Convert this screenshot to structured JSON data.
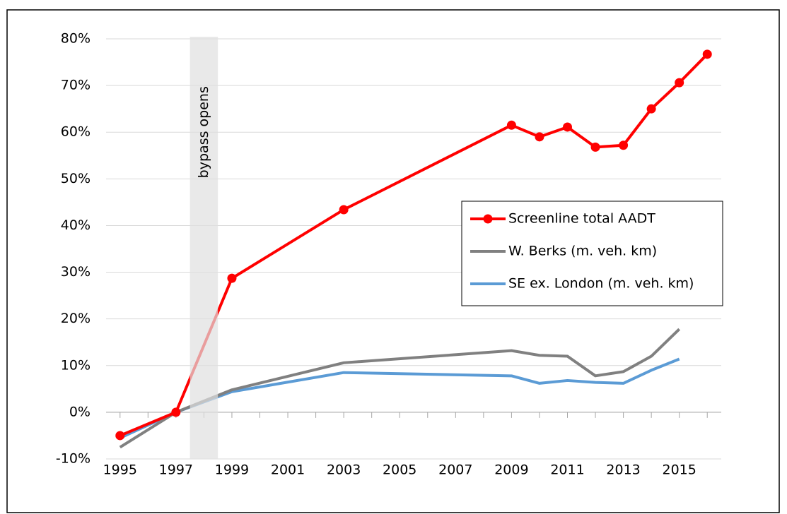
{
  "chart_data": {
    "type": "line",
    "xlim": [
      1994.5,
      2016.5
    ],
    "xticks": [
      1995,
      1997,
      1999,
      2001,
      2003,
      2005,
      2007,
      2009,
      2011,
      2013,
      2015
    ],
    "xminorticks": [
      1995,
      1996,
      1997,
      1998,
      1999,
      2000,
      2001,
      2002,
      2003,
      2004,
      2005,
      2006,
      2007,
      2008,
      2009,
      2010,
      2011,
      2012,
      2013,
      2014,
      2015,
      2016
    ],
    "ylim": [
      -10,
      80
    ],
    "yticks": [
      {
        "value": -10,
        "label": "-10%"
      },
      {
        "value": 0,
        "label": "0%"
      },
      {
        "value": 10,
        "label": "10%"
      },
      {
        "value": 20,
        "label": "20%"
      },
      {
        "value": 30,
        "label": "30%"
      },
      {
        "value": 40,
        "label": "40%"
      },
      {
        "value": 50,
        "label": "50%"
      },
      {
        "value": 60,
        "label": "60%"
      },
      {
        "value": 70,
        "label": "70%"
      },
      {
        "value": 80,
        "label": "80%"
      }
    ],
    "grid": true,
    "legend": "right",
    "annotation": {
      "text": "bypass opens",
      "x": [
        1997.5,
        1998.5
      ],
      "color": "#e0e0e0"
    },
    "series": [
      {
        "name": "Screenline total AADT",
        "color": "#ff0000",
        "markers": true,
        "x": [
          1995,
          1997,
          1999,
          2003,
          2009,
          2010,
          2011,
          2012,
          2013,
          2014,
          2015,
          2016
        ],
        "values": [
          -5,
          0,
          28.7,
          43.4,
          61.5,
          59,
          61.1,
          56.8,
          57.2,
          65,
          70.6,
          76.7
        ]
      },
      {
        "name": "W. Berks (m. veh. km)",
        "color": "#808080",
        "markers": false,
        "x": [
          1995,
          1997,
          1999,
          2003,
          2009,
          2010,
          2011,
          2012,
          2013,
          2014,
          2015
        ],
        "values": [
          -7.5,
          0,
          4.8,
          10.6,
          13.2,
          12.2,
          12,
          7.8,
          8.7,
          12,
          17.8
        ]
      },
      {
        "name": "SE ex. London (m. veh. km)",
        "color": "#5b9bd5",
        "markers": false,
        "x": [
          1995,
          1997,
          1999,
          2003,
          2009,
          2010,
          2011,
          2012,
          2013,
          2014,
          2015
        ],
        "values": [
          -5.5,
          0,
          4.4,
          8.5,
          7.8,
          6.2,
          6.8,
          6.4,
          6.2,
          9,
          11.4
        ]
      }
    ]
  }
}
